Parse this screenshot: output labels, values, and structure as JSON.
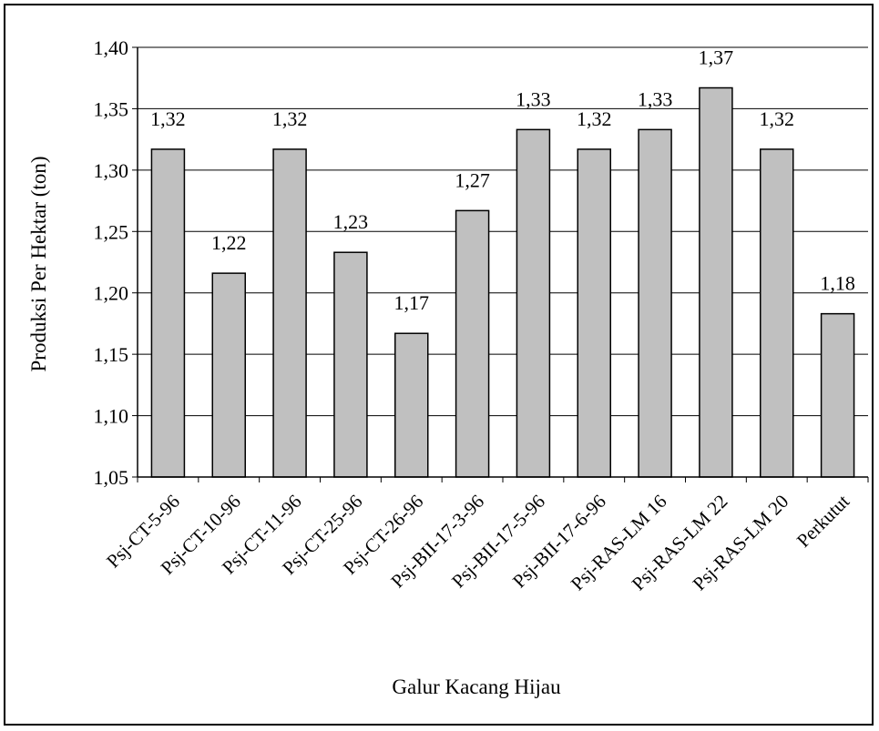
{
  "chart_data": {
    "type": "bar",
    "categories": [
      "Psj-CT-5-96",
      "Psj-CT-10-96",
      "Psj-CT-11-96",
      "Psj-CT-25-96",
      "Psj-CT-26-96",
      "Psj-BII-17-3-96",
      "Psj-BII-17-5-96",
      "Psj-BII-17-6-96",
      "Psj-RAS-LM 16",
      "Psj-RAS-LM 22",
      "Psj-RAS-LM 20",
      "Perkutut"
    ],
    "values": [
      1.317,
      1.216,
      1.317,
      1.233,
      1.167,
      1.267,
      1.333,
      1.317,
      1.333,
      1.367,
      1.317,
      1.183
    ],
    "data_labels": [
      "1,32",
      "1,22",
      "1,32",
      "1,23",
      "1,17",
      "1,27",
      "1,33",
      "1,32",
      "1,33",
      "1,37",
      "1,32",
      "1,18"
    ],
    "title": "",
    "xlabel": "Galur Kacang Hijau",
    "ylabel": "Produksi Per Hektar (ton)",
    "ylim": [
      1.05,
      1.4
    ],
    "yticks": [
      1.05,
      1.1,
      1.15,
      1.2,
      1.25,
      1.3,
      1.35,
      1.4
    ],
    "ytick_labels": [
      "1,05",
      "1,10",
      "1,15",
      "1,20",
      "1,25",
      "1,30",
      "1,35",
      "1,40"
    ],
    "grid": true,
    "legend": "none",
    "colors": {
      "bar_fill": "#c0c0c0",
      "bar_stroke": "#000000",
      "grid": "#000000"
    }
  }
}
